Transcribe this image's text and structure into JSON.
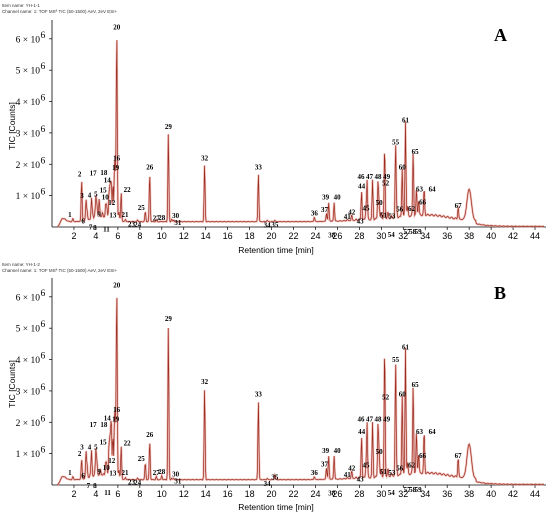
{
  "chart_data": [
    {
      "type": "line",
      "panel_label": "A",
      "header_lines": [
        "Item name: YH-1-1",
        "Channel name: 1: TOF MSª TIC (50-1500) AeV, 2eV ESI+"
      ],
      "xlabel": "Retention time [min]",
      "ylabel": "TIC [Counts]",
      "xlim": [
        0,
        45
      ],
      "ylim": [
        0,
        6600000
      ],
      "x_ticks": [
        "2",
        "4",
        "6",
        "8",
        "10",
        "12",
        "14",
        "16",
        "18",
        "20",
        "22",
        "24",
        "26",
        "28",
        "30",
        "32",
        "34",
        "36",
        "38",
        "40",
        "42",
        "44"
      ],
      "y_tick_values": [
        1000000,
        2000000,
        3000000,
        4000000,
        5000000,
        6000000
      ],
      "y_ticks": [
        "1 × 10",
        "2 × 10",
        "3 × 10",
        "4 × 10",
        "5 × 10",
        "6 × 10"
      ],
      "y_tick_exp": "6",
      "peaks": [
        {
          "label": "1",
          "rt": 1.9,
          "height": 250000
        },
        {
          "label": "2",
          "rt": 2.7,
          "height": 1480000
        },
        {
          "label": "3",
          "rt": 3.1,
          "height": 800000
        },
        {
          "label": "4",
          "rt": 3.6,
          "height": 820000
        },
        {
          "label": "5",
          "rt": 4.0,
          "height": 840000
        },
        {
          "label": "6",
          "rt": 3.2,
          "height": 430000
        },
        {
          "label": "7",
          "rt": 3.7,
          "height": 300000
        },
        {
          "label": "8",
          "rt": 3.9,
          "height": 280000
        },
        {
          "label": "9",
          "rt": 4.1,
          "height": 520000
        },
        {
          "label": "10",
          "rt": 4.3,
          "height": 750000
        },
        {
          "label": "11",
          "rt": 4.6,
          "height": 300000
        },
        {
          "label": "12",
          "rt": 4.9,
          "height": 600000
        },
        {
          "label": "13",
          "rt": 5.0,
          "height": 500000
        },
        {
          "label": "14",
          "rt": 5.4,
          "height": 1350000
        },
        {
          "label": "15",
          "rt": 5.2,
          "height": 1000000
        },
        {
          "label": "16",
          "rt": 5.7,
          "height": 2000000
        },
        {
          "label": "17",
          "rt": 5.3,
          "height": 1200000
        },
        {
          "label": "18",
          "rt": 5.55,
          "height": 1300000
        },
        {
          "label": "19",
          "rt": 5.8,
          "height": 1500000
        },
        {
          "label": "20",
          "rt": 5.9,
          "height": 6200000
        },
        {
          "label": "21",
          "rt": 6.1,
          "height": 450000
        },
        {
          "label": "22",
          "rt": 6.3,
          "height": 1050000
        },
        {
          "label": "23",
          "rt": 6.7,
          "height": 150000
        },
        {
          "label": "24",
          "rt": 7.8,
          "height": 130000
        },
        {
          "label": "25",
          "rt": 8.5,
          "height": 480000
        },
        {
          "label": "26",
          "rt": 8.9,
          "height": 1700000
        },
        {
          "label": "27",
          "rt": 9.5,
          "height": 140000
        },
        {
          "label": "28",
          "rt": 10.0,
          "height": 160000
        },
        {
          "label": "29",
          "rt": 10.6,
          "height": 3000000
        },
        {
          "label": "30",
          "rt": 10.9,
          "height": 230000
        },
        {
          "label": "31",
          "rt": 11.1,
          "height": 120000
        },
        {
          "label": "32",
          "rt": 13.9,
          "height": 2000000
        },
        {
          "label": "33",
          "rt": 18.8,
          "height": 1700000
        },
        {
          "label": "34",
          "rt": 19.6,
          "height": 110000
        },
        {
          "label": "35",
          "rt": 20.3,
          "height": 120000
        },
        {
          "label": "36",
          "rt": 23.9,
          "height": 300000
        },
        {
          "label": "37",
          "rt": 25.0,
          "height": 420000
        },
        {
          "label": "38",
          "rt": 25.3,
          "height": 180000
        },
        {
          "label": "39",
          "rt": 25.2,
          "height": 750000
        },
        {
          "label": "40",
          "rt": 25.7,
          "height": 750000
        },
        {
          "label": "41",
          "rt": 26.9,
          "height": 190000
        },
        {
          "label": "42",
          "rt": 27.3,
          "height": 330000
        },
        {
          "label": "43",
          "rt": 27.7,
          "height": 180000
        },
        {
          "label": "44",
          "rt": 28.2,
          "height": 1100000
        },
        {
          "label": "45",
          "rt": 28.6,
          "height": 470000
        },
        {
          "label": "46",
          "rt": 28.7,
          "height": 1400000
        },
        {
          "label": "47",
          "rt": 29.2,
          "height": 1400000
        },
        {
          "label": "48",
          "rt": 29.7,
          "height": 1400000
        },
        {
          "label": "49",
          "rt": 30.3,
          "height": 1400000
        },
        {
          "label": "50",
          "rt": 29.8,
          "height": 600000
        },
        {
          "label": "51",
          "rt": 30.0,
          "height": 370000
        },
        {
          "label": "52",
          "rt": 30.3,
          "height": 1200000
        },
        {
          "label": "53",
          "rt": 30.6,
          "height": 330000
        },
        {
          "label": "54",
          "rt": 30.9,
          "height": 130000
        },
        {
          "label": "55",
          "rt": 31.3,
          "height": 2500000
        },
        {
          "label": "56",
          "rt": 31.4,
          "height": 430000
        },
        {
          "label": "57",
          "rt": 31.8,
          "height": 160000
        },
        {
          "label": "58",
          "rt": 32.3,
          "height": 160000
        },
        {
          "label": "59",
          "rt": 32.8,
          "height": 160000
        },
        {
          "label": "60",
          "rt": 31.9,
          "height": 1700000
        },
        {
          "label": "61",
          "rt": 32.2,
          "height": 3200000
        },
        {
          "label": "62",
          "rt": 32.4,
          "height": 450000
        },
        {
          "label": "63",
          "rt": 33.2,
          "height": 1000000
        },
        {
          "label": "64",
          "rt": 33.9,
          "height": 1000000
        },
        {
          "label": "65",
          "rt": 32.9,
          "height": 2200000
        },
        {
          "label": "66",
          "rt": 33.4,
          "height": 650000
        },
        {
          "label": "67",
          "rt": 37.0,
          "height": 550000
        },
        {
          "label": "",
          "rt": 38.0,
          "height": 1150000
        }
      ]
    },
    {
      "type": "line",
      "panel_label": "B",
      "header_lines": [
        "Item name: YH-1-2",
        "Channel name: 1: TOF MSª TIC (50-1500) AeV, 2eV ESI+"
      ],
      "xlabel": "Retention time [min]",
      "ylabel": "TIC [Counts]",
      "xlim": [
        0,
        45
      ],
      "ylim": [
        0,
        6600000
      ],
      "x_ticks": [
        "2",
        "4",
        "6",
        "8",
        "10",
        "12",
        "14",
        "16",
        "18",
        "20",
        "22",
        "24",
        "26",
        "28",
        "30",
        "32",
        "34",
        "36",
        "38",
        "40",
        "42",
        "44"
      ],
      "y_tick_values": [
        1000000,
        2000000,
        3000000,
        4000000,
        5000000,
        6000000
      ],
      "y_ticks": [
        "1 × 10",
        "2 × 10",
        "3 × 10",
        "4 × 10",
        "5 × 10",
        "6 × 10"
      ],
      "y_tick_exp": "6",
      "peaks": [
        {
          "label": "1",
          "rt": 1.9,
          "height": 250000
        },
        {
          "label": "2",
          "rt": 2.7,
          "height": 800000
        },
        {
          "label": "3",
          "rt": 3.1,
          "height": 1000000
        },
        {
          "label": "4",
          "rt": 3.6,
          "height": 1000000
        },
        {
          "label": "5",
          "rt": 4.0,
          "height": 1000000
        },
        {
          "label": "6",
          "rt": 3.2,
          "height": 550000
        },
        {
          "label": "7",
          "rt": 3.5,
          "height": 280000
        },
        {
          "label": "8",
          "rt": 3.9,
          "height": 280000
        },
        {
          "label": "9",
          "rt": 4.1,
          "height": 550000
        },
        {
          "label": "10",
          "rt": 4.4,
          "height": 350000
        },
        {
          "label": "11",
          "rt": 4.7,
          "height": 120000
        },
        {
          "label": "12",
          "rt": 4.9,
          "height": 600000
        },
        {
          "label": "13",
          "rt": 5.0,
          "height": 500000
        },
        {
          "label": "14",
          "rt": 5.4,
          "height": 2000000
        },
        {
          "label": "15",
          "rt": 5.2,
          "height": 1200000
        },
        {
          "label": "16",
          "rt": 5.7,
          "height": 2200000
        },
        {
          "label": "17",
          "rt": 5.3,
          "height": 1400000
        },
        {
          "label": "18",
          "rt": 5.55,
          "height": 1500000
        },
        {
          "label": "19",
          "rt": 5.8,
          "height": 1700000
        },
        {
          "label": "20",
          "rt": 5.9,
          "height": 6200000
        },
        {
          "label": "21",
          "rt": 6.1,
          "height": 450000
        },
        {
          "label": "22",
          "rt": 6.3,
          "height": 1200000
        },
        {
          "label": "23",
          "rt": 6.7,
          "height": 150000
        },
        {
          "label": "24",
          "rt": 7.8,
          "height": 130000
        },
        {
          "label": "25",
          "rt": 8.5,
          "height": 700000
        },
        {
          "label": "26",
          "rt": 8.9,
          "height": 1400000
        },
        {
          "label": "27",
          "rt": 9.5,
          "height": 250000
        },
        {
          "label": "28",
          "rt": 10.0,
          "height": 280000
        },
        {
          "label": "29",
          "rt": 10.6,
          "height": 5100000
        },
        {
          "label": "30",
          "rt": 10.9,
          "height": 200000
        },
        {
          "label": "31",
          "rt": 11.1,
          "height": 110000
        },
        {
          "label": "32",
          "rt": 13.9,
          "height": 3100000
        },
        {
          "label": "33",
          "rt": 18.8,
          "height": 2700000
        },
        {
          "label": "34",
          "rt": 19.6,
          "height": 100000
        },
        {
          "label": "35",
          "rt": 20.3,
          "height": 300000
        },
        {
          "label": "36",
          "rt": 23.9,
          "height": 250000
        },
        {
          "label": "37",
          "rt": 25.0,
          "height": 530000
        },
        {
          "label": "38",
          "rt": 25.3,
          "height": 170000
        },
        {
          "label": "39",
          "rt": 25.2,
          "height": 900000
        },
        {
          "label": "40",
          "rt": 25.7,
          "height": 900000
        },
        {
          "label": "41",
          "rt": 26.9,
          "height": 190000
        },
        {
          "label": "42",
          "rt": 27.3,
          "height": 400000
        },
        {
          "label": "43",
          "rt": 27.7,
          "height": 180000
        },
        {
          "label": "44",
          "rt": 28.2,
          "height": 1500000
        },
        {
          "label": "45",
          "rt": 28.6,
          "height": 500000
        },
        {
          "label": "46",
          "rt": 28.7,
          "height": 1900000
        },
        {
          "label": "47",
          "rt": 29.2,
          "height": 1900000
        },
        {
          "label": "48",
          "rt": 29.7,
          "height": 1900000
        },
        {
          "label": "49",
          "rt": 30.3,
          "height": 1900000
        },
        {
          "label": "50",
          "rt": 29.8,
          "height": 900000
        },
        {
          "label": "51",
          "rt": 30.0,
          "height": 420000
        },
        {
          "label": "52",
          "rt": 30.3,
          "height": 2600000
        },
        {
          "label": "53",
          "rt": 30.6,
          "height": 380000
        },
        {
          "label": "54",
          "rt": 30.9,
          "height": 130000
        },
        {
          "label": "55",
          "rt": 31.3,
          "height": 3800000
        },
        {
          "label": "56",
          "rt": 31.4,
          "height": 400000
        },
        {
          "label": "57",
          "rt": 31.8,
          "height": 160000
        },
        {
          "label": "58",
          "rt": 32.3,
          "height": 160000
        },
        {
          "label": "59",
          "rt": 32.8,
          "height": 160000
        },
        {
          "label": "60",
          "rt": 31.9,
          "height": 2700000
        },
        {
          "label": "61",
          "rt": 32.2,
          "height": 4200000
        },
        {
          "label": "62",
          "rt": 32.4,
          "height": 500000
        },
        {
          "label": "63",
          "rt": 33.2,
          "height": 1500000
        },
        {
          "label": "64",
          "rt": 33.9,
          "height": 1500000
        },
        {
          "label": "65",
          "rt": 32.9,
          "height": 3000000
        },
        {
          "label": "66",
          "rt": 33.4,
          "height": 800000
        },
        {
          "label": "67",
          "rt": 37.0,
          "height": 800000
        },
        {
          "label": "",
          "rt": 38.0,
          "height": 1250000
        }
      ]
    }
  ]
}
